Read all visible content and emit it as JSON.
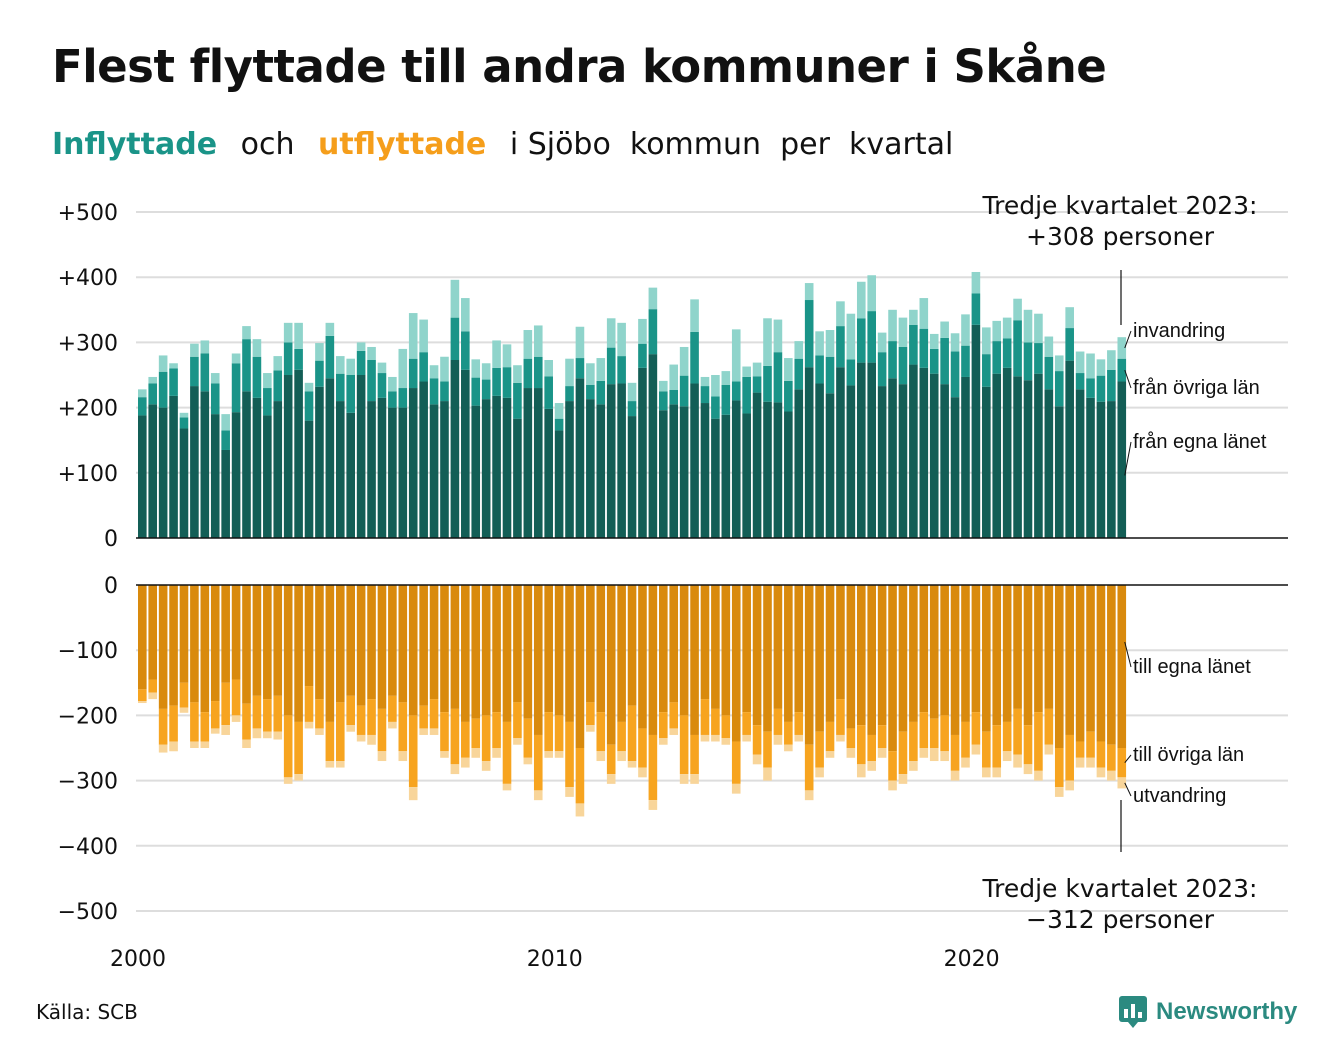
{
  "title": "Flest flyttade till andra kommuner i Skåne",
  "subtitle": {
    "in_word": "Inflyttade",
    "and_word": "och",
    "out_word": "utflyttade",
    "rest": "i Sjöbo  kommun  per  kvartal"
  },
  "source": "Källa: SCB",
  "logo_text": "Newsworthy",
  "colors": {
    "in_own": "#135e56",
    "in_other": "#1a9488",
    "in_immig": "#8fd4cb",
    "out_own": "#d98a0d",
    "out_other": "#f7a41f",
    "out_emig": "#f8d59a",
    "grid": "#dddddd",
    "logo": "#2b8a80"
  },
  "annotations": {
    "top_line1": "Tredje kvartalet 2023:",
    "top_line2": "+308 personer",
    "bottom_line1": "Tredje kvartalet 2023:",
    "bottom_line2": "−312 personer"
  },
  "chart_data": [
    {
      "type": "bar",
      "stacked": true,
      "xaxis": {
        "ticks": [
          "2000",
          "2010",
          "2020"
        ],
        "start_year": 2000,
        "start_quarter": 1,
        "periods": 95
      },
      "ylim": [
        0,
        500
      ],
      "ytick_labels": [
        "0",
        "+100",
        "+200",
        "+300",
        "+400",
        "+500"
      ],
      "series": [
        {
          "name": "från egna länet",
          "values": [
            188,
            205,
            200,
            218,
            168,
            233,
            225,
            190,
            135,
            193,
            225,
            215,
            188,
            210,
            250,
            258,
            180,
            232,
            245,
            210,
            192,
            250,
            210,
            215,
            200,
            200,
            230,
            240,
            205,
            210,
            273,
            258,
            203,
            213,
            218,
            215,
            183,
            230,
            230,
            198,
            165,
            210,
            245,
            213,
            205,
            236,
            237,
            187,
            261,
            282,
            196,
            205,
            202,
            237,
            207,
            183,
            189,
            211,
            191,
            223,
            209,
            208,
            194,
            228,
            262,
            237,
            222,
            262,
            234,
            269,
            269,
            233,
            245,
            236,
            266,
            261,
            252,
            236,
            216,
            247,
            327,
            232,
            252,
            261,
            248,
            242,
            252,
            228,
            202,
            272,
            228,
            215,
            209,
            210,
            240
          ]
        },
        {
          "name": "från övriga län",
          "values": [
            28,
            32,
            55,
            42,
            17,
            45,
            58,
            47,
            30,
            75,
            80,
            63,
            42,
            47,
            50,
            32,
            45,
            40,
            65,
            42,
            58,
            37,
            63,
            38,
            25,
            30,
            45,
            45,
            40,
            30,
            65,
            59,
            43,
            30,
            43,
            47,
            55,
            45,
            48,
            50,
            18,
            23,
            31,
            22,
            36,
            56,
            42,
            23,
            37,
            69,
            29,
            22,
            47,
            79,
            26,
            34,
            46,
            29,
            56,
            25,
            55,
            77,
            47,
            47,
            103,
            43,
            56,
            63,
            40,
            68,
            79,
            52,
            57,
            57,
            61,
            60,
            38,
            71,
            70,
            48,
            48,
            50,
            50,
            45,
            86,
            58,
            47,
            50,
            54,
            50,
            25,
            30,
            40,
            48,
            35
          ]
        },
        {
          "name": "invandring",
          "values": [
            12,
            10,
            25,
            8,
            7,
            20,
            20,
            16,
            25,
            15,
            20,
            27,
            23,
            22,
            30,
            40,
            13,
            27,
            20,
            27,
            25,
            13,
            20,
            16,
            22,
            60,
            70,
            50,
            20,
            38,
            58,
            51,
            28,
            25,
            42,
            35,
            27,
            44,
            48,
            25,
            24,
            42,
            48,
            33,
            35,
            45,
            51,
            28,
            38,
            33,
            16,
            39,
            44,
            50,
            14,
            33,
            21,
            80,
            16,
            21,
            73,
            50,
            35,
            27,
            26,
            37,
            41,
            38,
            70,
            56,
            55,
            30,
            48,
            45,
            23,
            47,
            23,
            25,
            28,
            48,
            33,
            41,
            31,
            32,
            33,
            50,
            45,
            31,
            24,
            32,
            33,
            38,
            25,
            30,
            33
          ]
        }
      ]
    },
    {
      "type": "bar",
      "stacked": true,
      "xaxis": {
        "ticks": [
          "2000",
          "2010",
          "2020"
        ],
        "start_year": 2000,
        "start_quarter": 1,
        "periods": 95
      },
      "ylim": [
        -500,
        0
      ],
      "ytick_labels": [
        "0",
        "−100",
        "−200",
        "−300",
        "−400",
        "−500"
      ],
      "series": [
        {
          "name": "till egna länet",
          "values": [
            -160,
            -145,
            -190,
            -185,
            -150,
            -180,
            -195,
            -178,
            -150,
            -145,
            -182,
            -170,
            -175,
            -170,
            -200,
            -210,
            -155,
            -175,
            -210,
            -180,
            -170,
            -185,
            -175,
            -190,
            -170,
            -180,
            -200,
            -185,
            -175,
            -195,
            -190,
            -210,
            -205,
            -200,
            -195,
            -210,
            -180,
            -205,
            -230,
            -195,
            -200,
            -210,
            -250,
            -180,
            -195,
            -245,
            -210,
            -185,
            -220,
            -230,
            -195,
            -180,
            -200,
            -230,
            -175,
            -190,
            -200,
            -240,
            -195,
            -215,
            -225,
            -190,
            -210,
            -195,
            -245,
            -225,
            -210,
            -175,
            -220,
            -215,
            -230,
            -215,
            -255,
            -225,
            -210,
            -195,
            -205,
            -200,
            -230,
            -210,
            -195,
            -225,
            -215,
            -210,
            -190,
            -215,
            -195,
            -190,
            -250,
            -230,
            -240,
            -225,
            -240,
            -245,
            -250
          ]
        },
        {
          "name": "till övriga län",
          "values": [
            -18,
            -20,
            -55,
            -55,
            -38,
            -60,
            -45,
            -42,
            -65,
            -55,
            -55,
            -50,
            -50,
            -55,
            -95,
            -80,
            -55,
            -45,
            -60,
            -90,
            -45,
            -45,
            -55,
            -65,
            -40,
            -75,
            -110,
            -35,
            -45,
            -60,
            -85,
            -55,
            -45,
            -70,
            -55,
            -95,
            -55,
            -60,
            -85,
            -60,
            -55,
            -100,
            -85,
            -35,
            -60,
            -45,
            -45,
            -85,
            -60,
            -100,
            -40,
            -40,
            -90,
            -60,
            -55,
            -40,
            -35,
            -65,
            -35,
            -45,
            -55,
            -40,
            -35,
            -35,
            -70,
            -55,
            -45,
            -55,
            -30,
            -60,
            -40,
            -35,
            -45,
            -65,
            -60,
            -55,
            -45,
            -55,
            -55,
            -55,
            -50,
            -55,
            -65,
            -45,
            -70,
            -60,
            -90,
            -55,
            -60,
            -70,
            -25,
            -40,
            -40,
            -40,
            -45
          ]
        },
        {
          "name": "utvandring",
          "values": [
            -3,
            -10,
            -12,
            -15,
            -8,
            -10,
            -10,
            -8,
            -15,
            -10,
            -13,
            -15,
            -10,
            -12,
            -10,
            -10,
            -10,
            -10,
            -10,
            -10,
            -10,
            -10,
            -15,
            -15,
            -10,
            -15,
            -20,
            -10,
            -10,
            -10,
            -15,
            -15,
            -15,
            -15,
            -15,
            -10,
            -10,
            -10,
            -15,
            -10,
            -10,
            -15,
            -20,
            -10,
            -15,
            -15,
            -15,
            -10,
            -15,
            -15,
            -10,
            -10,
            -15,
            -15,
            -10,
            -10,
            -10,
            -15,
            -10,
            -15,
            -20,
            -15,
            -10,
            -10,
            -15,
            -15,
            -10,
            -10,
            -15,
            -20,
            -15,
            -15,
            -15,
            -15,
            -15,
            -15,
            -20,
            -15,
            -15,
            -15,
            -15,
            -15,
            -15,
            -15,
            -20,
            -15,
            -15,
            -15,
            -15,
            -15,
            -15,
            -15,
            -15,
            -15,
            -17
          ]
        }
      ]
    }
  ],
  "labels": {
    "in": [
      "invandring",
      "från övriga län",
      "från egna länet"
    ],
    "out": [
      "till egna länet",
      "till övriga län",
      "utvandring"
    ]
  }
}
